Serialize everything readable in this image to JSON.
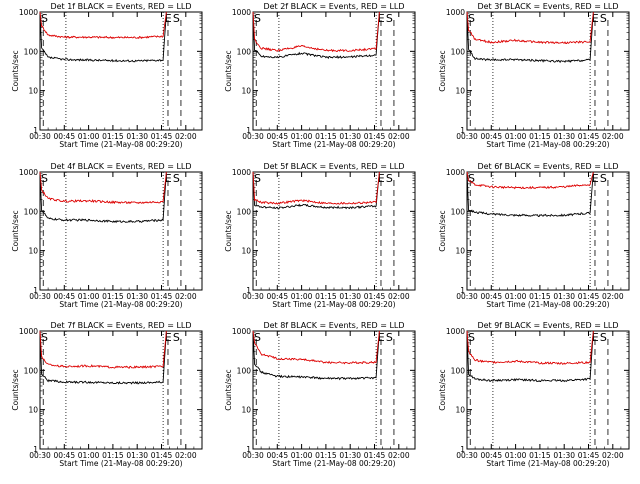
{
  "figure": {
    "background": "#ffffff",
    "events_color": "#000000",
    "lld_color": "#dd0000"
  },
  "chart_data": [
    {
      "type": "line",
      "title": "Det 1f BLACK = Events, RED = LLD",
      "xlabel": "Start Time (21-May-08 00:29:20)",
      "ylabel": "Counts/sec",
      "yscale": "log",
      "ylim": [
        1,
        1000
      ],
      "xlim": [
        "00:30",
        "02:10"
      ],
      "xticklabels": [
        "00:30",
        "00:45",
        "01:00",
        "01:15",
        "01:30",
        "01:45",
        "02:00"
      ],
      "yticklabels": [
        "1",
        "10",
        "100",
        "1000"
      ],
      "markers": [
        "S",
        "E",
        "S"
      ],
      "series": [
        {
          "name": "Events",
          "color": "#000000",
          "x": [
            "00:30",
            "00:31",
            "00:35",
            "00:45",
            "01:00",
            "01:15",
            "01:30",
            "01:45",
            "01:46",
            "01:48"
          ],
          "y": [
            1000,
            120,
            70,
            62,
            60,
            58,
            57,
            60,
            60,
            1000
          ]
        },
        {
          "name": "LLD",
          "color": "#dd0000",
          "x": [
            "00:30",
            "00:31",
            "00:35",
            "00:45",
            "01:00",
            "01:15",
            "01:30",
            "01:45",
            "01:46",
            "01:48"
          ],
          "y": [
            1000,
            450,
            260,
            230,
            230,
            225,
            225,
            240,
            240,
            1000
          ]
        }
      ]
    },
    {
      "type": "line",
      "title": "Det 2f BLACK = Events, RED = LLD",
      "xlabel": "Start Time (21-May-08 00:29:20)",
      "ylabel": "Counts/sec",
      "yscale": "log",
      "ylim": [
        1,
        1000
      ],
      "xlim": [
        "00:30",
        "02:10"
      ],
      "xticklabels": [
        "00:30",
        "00:45",
        "01:00",
        "01:15",
        "01:30",
        "01:45",
        "02:00"
      ],
      "yticklabels": [
        "1",
        "10",
        "100",
        "1000"
      ],
      "markers": [
        "S",
        "E",
        "S"
      ],
      "series": [
        {
          "name": "Events",
          "color": "#000000",
          "x": [
            "00:30",
            "00:31",
            "00:35",
            "00:45",
            "01:00",
            "01:15",
            "01:30",
            "01:45",
            "01:46",
            "01:48"
          ],
          "y": [
            1000,
            110,
            75,
            70,
            90,
            70,
            72,
            80,
            80,
            1000
          ]
        },
        {
          "name": "LLD",
          "color": "#dd0000",
          "x": [
            "00:30",
            "00:31",
            "00:35",
            "00:45",
            "01:00",
            "01:15",
            "01:30",
            "01:45",
            "01:46",
            "01:48"
          ],
          "y": [
            1000,
            200,
            120,
            105,
            135,
            105,
            105,
            115,
            115,
            1000
          ]
        }
      ]
    },
    {
      "type": "line",
      "title": "Det 3f BLACK = Events, RED = LLD",
      "xlabel": "Start Time (21-May-08 00:29:20)",
      "ylabel": "Counts/sec",
      "yscale": "log",
      "ylim": [
        1,
        1000
      ],
      "xlim": [
        "00:30",
        "02:10"
      ],
      "xticklabels": [
        "00:30",
        "00:45",
        "01:00",
        "01:15",
        "01:30",
        "01:45",
        "02:00"
      ],
      "yticklabels": [
        "1",
        "10",
        "100",
        "1000"
      ],
      "markers": [
        "S",
        "E",
        "S"
      ],
      "series": [
        {
          "name": "Events",
          "color": "#000000",
          "x": [
            "00:30",
            "00:31",
            "00:35",
            "00:45",
            "01:00",
            "01:15",
            "01:30",
            "01:45",
            "01:46",
            "01:48"
          ],
          "y": [
            1000,
            110,
            65,
            60,
            62,
            58,
            55,
            60,
            60,
            1000
          ]
        },
        {
          "name": "LLD",
          "color": "#dd0000",
          "x": [
            "00:30",
            "00:31",
            "00:35",
            "00:45",
            "01:00",
            "01:15",
            "01:30",
            "01:45",
            "01:46",
            "01:48"
          ],
          "y": [
            1000,
            350,
            200,
            170,
            190,
            170,
            165,
            175,
            175,
            1000
          ]
        }
      ]
    },
    {
      "type": "line",
      "title": "Det 4f BLACK = Events, RED = LLD",
      "xlabel": "Start Time (21-May-08 00:29:20)",
      "ylabel": "Counts/sec",
      "yscale": "log",
      "ylim": [
        1,
        1000
      ],
      "xlim": [
        "00:30",
        "02:10"
      ],
      "xticklabels": [
        "00:30",
        "00:45",
        "01:00",
        "01:15",
        "01:30",
        "01:45",
        "02:00"
      ],
      "yticklabels": [
        "1",
        "10",
        "100",
        "1000"
      ],
      "markers": [
        "S",
        "E",
        "S"
      ],
      "series": [
        {
          "name": "Events",
          "color": "#000000",
          "x": [
            "00:30",
            "00:31",
            "00:35",
            "00:45",
            "01:00",
            "01:15",
            "01:30",
            "01:45",
            "01:46",
            "01:48"
          ],
          "y": [
            1000,
            110,
            65,
            60,
            60,
            55,
            55,
            60,
            60,
            1000
          ]
        },
        {
          "name": "LLD",
          "color": "#dd0000",
          "x": [
            "00:30",
            "00:31",
            "00:35",
            "00:45",
            "01:00",
            "01:15",
            "01:30",
            "01:45",
            "01:46",
            "01:48"
          ],
          "y": [
            1000,
            350,
            210,
            180,
            185,
            170,
            165,
            175,
            175,
            1000
          ]
        }
      ]
    },
    {
      "type": "line",
      "title": "Det 5f BLACK = Events, RED = LLD",
      "xlabel": "Start Time (21-May-08 00:29:20)",
      "ylabel": "Counts/sec",
      "yscale": "log",
      "ylim": [
        1,
        1000
      ],
      "xlim": [
        "00:30",
        "02:10"
      ],
      "xticklabels": [
        "00:30",
        "00:45",
        "01:00",
        "01:15",
        "01:30",
        "01:45",
        "02:00"
      ],
      "yticklabels": [
        "1",
        "10",
        "100",
        "1000"
      ],
      "markers": [
        "S",
        "E",
        "S"
      ],
      "series": [
        {
          "name": "Events",
          "color": "#000000",
          "x": [
            "00:30",
            "00:31",
            "00:35",
            "00:45",
            "01:00",
            "01:15",
            "01:30",
            "01:45",
            "01:46",
            "01:48"
          ],
          "y": [
            1000,
            140,
            130,
            120,
            145,
            125,
            125,
            135,
            135,
            1000
          ]
        },
        {
          "name": "LLD",
          "color": "#dd0000",
          "x": [
            "00:30",
            "00:31",
            "00:35",
            "00:45",
            "01:00",
            "01:15",
            "01:30",
            "01:45",
            "01:46",
            "01:48"
          ],
          "y": [
            1000,
            200,
            170,
            160,
            190,
            160,
            160,
            170,
            170,
            1000
          ]
        }
      ]
    },
    {
      "type": "line",
      "title": "Det 6f BLACK = Events, RED = LLD",
      "xlabel": "Start Time (21-May-08 00:29:20)",
      "ylabel": "Counts/sec",
      "yscale": "log",
      "ylim": [
        1,
        1000
      ],
      "xlim": [
        "00:30",
        "02:10"
      ],
      "xticklabels": [
        "00:30",
        "00:45",
        "01:00",
        "01:15",
        "01:30",
        "01:45",
        "02:00"
      ],
      "yticklabels": [
        "1",
        "10",
        "100",
        "1000"
      ],
      "markers": [
        "S",
        "E",
        "S"
      ],
      "series": [
        {
          "name": "Events",
          "color": "#000000",
          "x": [
            "00:30",
            "00:31",
            "00:35",
            "00:45",
            "01:00",
            "01:15",
            "01:30",
            "01:45",
            "01:46",
            "01:48"
          ],
          "y": [
            1000,
            110,
            95,
            85,
            80,
            78,
            80,
            90,
            90,
            1000
          ]
        },
        {
          "name": "LLD",
          "color": "#dd0000",
          "x": [
            "00:30",
            "00:31",
            "00:35",
            "00:45",
            "01:00",
            "01:15",
            "01:30",
            "01:45",
            "01:46",
            "01:48"
          ],
          "y": [
            1000,
            600,
            480,
            420,
            400,
            400,
            420,
            480,
            480,
            1000
          ]
        }
      ]
    },
    {
      "type": "line",
      "title": "Det 7f BLACK = Events, RED = LLD",
      "xlabel": "Start Time (21-May-08 00:29:20)",
      "ylabel": "Counts/sec",
      "yscale": "log",
      "ylim": [
        1,
        1000
      ],
      "xlim": [
        "00:30",
        "02:10"
      ],
      "xticklabels": [
        "00:30",
        "00:45",
        "01:00",
        "01:15",
        "01:30",
        "01:45",
        "02:00"
      ],
      "yticklabels": [
        "1",
        "10",
        "100",
        "1000"
      ],
      "markers": [
        "S",
        "E",
        "S"
      ],
      "series": [
        {
          "name": "Events",
          "color": "#000000",
          "x": [
            "00:30",
            "00:31",
            "00:35",
            "00:45",
            "01:00",
            "01:15",
            "01:30",
            "01:45",
            "01:46",
            "01:48"
          ],
          "y": [
            1000,
            80,
            55,
            50,
            50,
            48,
            48,
            50,
            50,
            1000
          ]
        },
        {
          "name": "LLD",
          "color": "#dd0000",
          "x": [
            "00:30",
            "00:31",
            "00:35",
            "00:45",
            "01:00",
            "01:15",
            "01:30",
            "01:45",
            "01:46",
            "01:48"
          ],
          "y": [
            1000,
            220,
            140,
            125,
            130,
            120,
            120,
            125,
            125,
            1000
          ]
        }
      ]
    },
    {
      "type": "line",
      "title": "Det 8f BLACK = Events, RED = LLD",
      "xlabel": "Start Time (21-May-08 00:29:20)",
      "ylabel": "Counts/sec",
      "yscale": "log",
      "ylim": [
        1,
        1000
      ],
      "xlim": [
        "00:30",
        "02:10"
      ],
      "xticklabels": [
        "00:30",
        "00:45",
        "01:00",
        "01:15",
        "01:30",
        "01:45",
        "02:00"
      ],
      "yticklabels": [
        "1",
        "10",
        "100",
        "1000"
      ],
      "markers": [
        "S",
        "E",
        "S"
      ],
      "series": [
        {
          "name": "Events",
          "color": "#000000",
          "x": [
            "00:30",
            "00:31",
            "00:35",
            "00:45",
            "01:00",
            "01:15",
            "01:30",
            "01:45",
            "01:46",
            "01:48"
          ],
          "y": [
            1000,
            150,
            90,
            70,
            68,
            62,
            62,
            65,
            65,
            1000
          ]
        },
        {
          "name": "LLD",
          "color": "#dd0000",
          "x": [
            "00:30",
            "00:31",
            "00:35",
            "00:45",
            "01:00",
            "01:15",
            "01:30",
            "01:45",
            "01:46",
            "01:48"
          ],
          "y": [
            1000,
            500,
            260,
            200,
            190,
            160,
            155,
            160,
            160,
            1000
          ]
        }
      ]
    },
    {
      "type": "line",
      "title": "Det 9f BLACK = Events, RED = LLD",
      "xlabel": "Start Time (21-May-08 00:29:20)",
      "ylabel": "Counts/sec",
      "yscale": "log",
      "ylim": [
        1,
        1000
      ],
      "xlim": [
        "00:30",
        "02:10"
      ],
      "xticklabels": [
        "00:30",
        "00:45",
        "01:00",
        "01:15",
        "01:30",
        "01:45",
        "02:00"
      ],
      "yticklabels": [
        "1",
        "10",
        "100",
        "1000"
      ],
      "markers": [
        "S",
        "E",
        "S"
      ],
      "series": [
        {
          "name": "Events",
          "color": "#000000",
          "x": [
            "00:30",
            "00:31",
            "00:35",
            "00:45",
            "01:00",
            "01:15",
            "01:30",
            "01:45",
            "01:46",
            "01:48"
          ],
          "y": [
            1000,
            80,
            60,
            55,
            58,
            55,
            55,
            60,
            60,
            1000
          ]
        },
        {
          "name": "LLD",
          "color": "#dd0000",
          "x": [
            "00:30",
            "00:31",
            "00:35",
            "00:45",
            "01:00",
            "01:15",
            "01:30",
            "01:45",
            "01:46",
            "01:48"
          ],
          "y": [
            1000,
            300,
            180,
            160,
            170,
            155,
            150,
            160,
            160,
            1000
          ]
        }
      ]
    }
  ]
}
